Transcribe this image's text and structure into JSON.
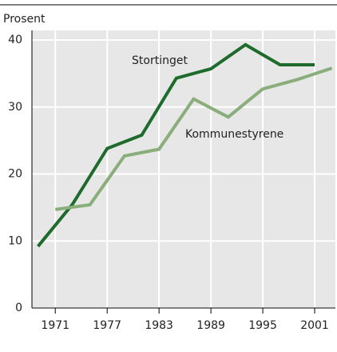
{
  "chart_data": {
    "type": "line",
    "y_label": "Prosent",
    "annotations": [
      "Stortinget",
      "Kommunestyrene"
    ],
    "series": [
      {
        "name": "Stortinget",
        "color": "#1f6b2c",
        "x": [
          1969,
          1973,
          1977,
          1981,
          1985,
          1989,
          1993,
          1997,
          2001
        ],
        "values": [
          9.2,
          15.5,
          23.8,
          25.8,
          34.3,
          35.7,
          39.3,
          36.3,
          36.3
        ]
      },
      {
        "name": "Kommunestyrene",
        "color": "#8aae7b",
        "x": [
          1971,
          1975,
          1979,
          1983,
          1987,
          1991,
          1995,
          1999,
          2003
        ],
        "values": [
          14.7,
          15.4,
          22.7,
          23.7,
          31.2,
          28.5,
          32.7,
          34.1,
          35.8
        ]
      }
    ],
    "xlim": [
      1968.3,
      2003.4
    ],
    "xticks": [
      1971,
      1977,
      1983,
      1989,
      1995,
      2001
    ],
    "ylim": [
      0,
      40
    ],
    "yticks": [
      0,
      10,
      20,
      30,
      40
    ],
    "grid": true
  }
}
